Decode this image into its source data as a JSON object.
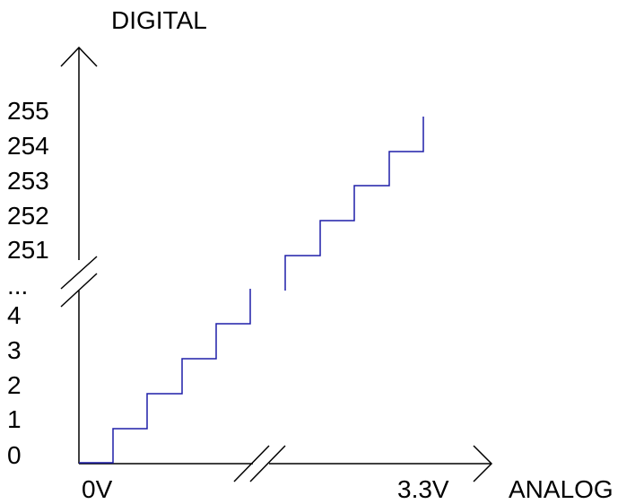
{
  "colors": {
    "axis": "#000000",
    "staircase": "#1f1fa8",
    "background": "#ffffff"
  },
  "y_axis": {
    "title": "DIGITAL",
    "tick_labels": [
      "0",
      "1",
      "2",
      "3",
      "4",
      "...",
      "251",
      "252",
      "253",
      "254",
      "255"
    ],
    "break": true
  },
  "x_axis": {
    "title": "ANALOG",
    "start_label": "0V",
    "end_label": "3.3V",
    "break": true
  },
  "chart_data": {
    "type": "line",
    "title": "",
    "xlabel": "ANALOG",
    "ylabel": "DIGITAL",
    "segments": [
      {
        "codes": [
          0,
          1,
          2,
          3,
          4
        ]
      },
      {
        "codes": [
          251,
          252,
          253,
          254,
          255
        ]
      }
    ]
  }
}
